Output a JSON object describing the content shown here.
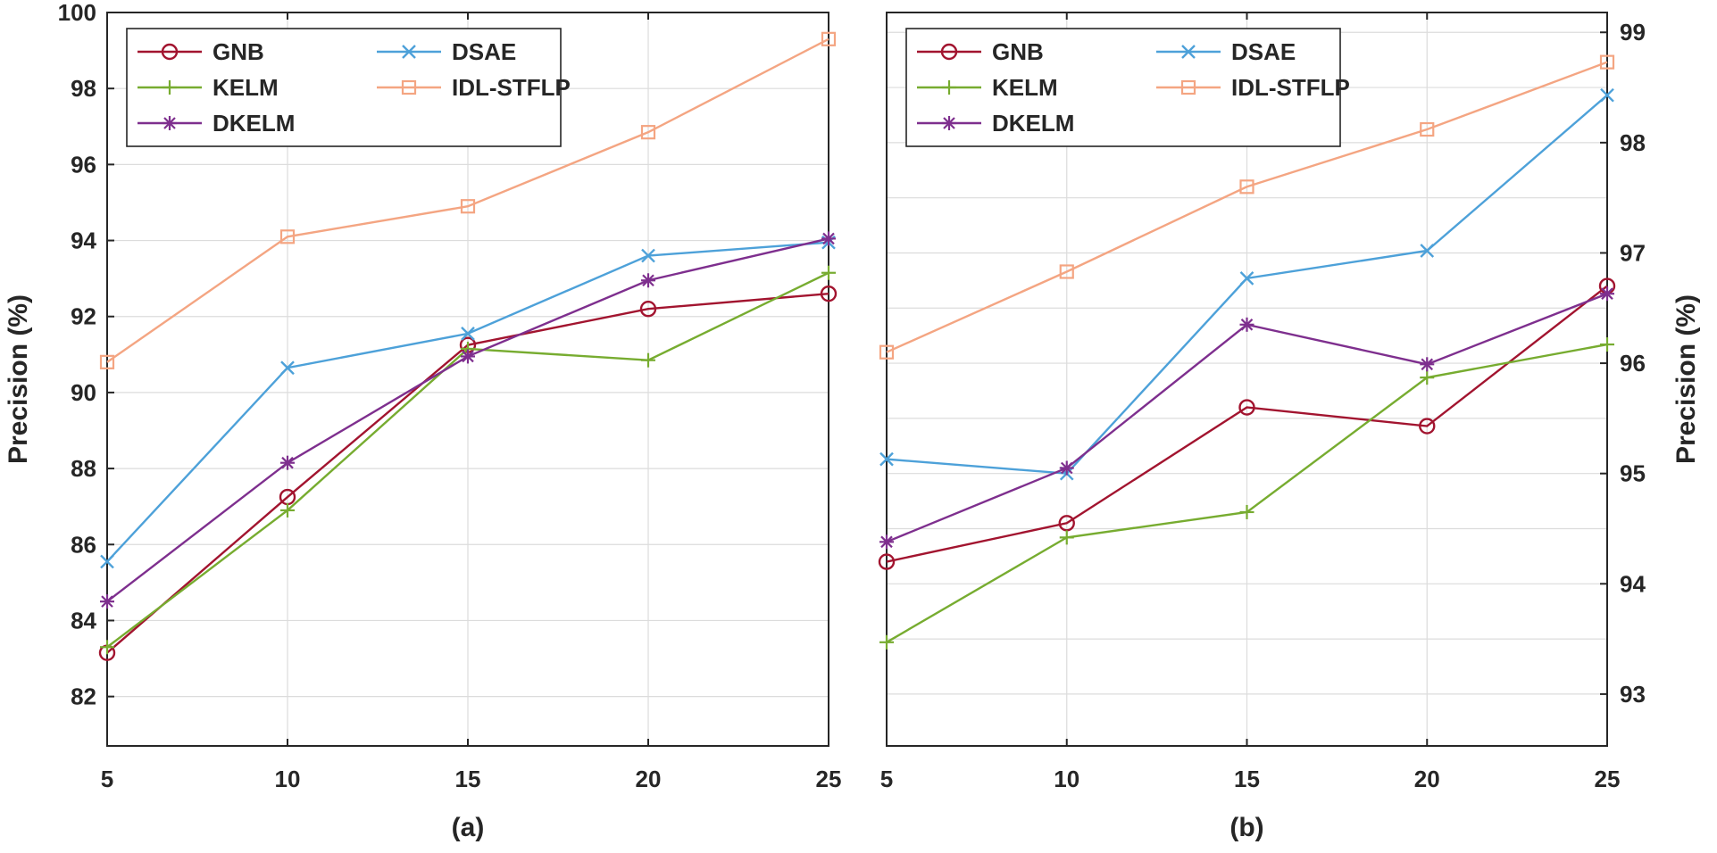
{
  "chart_data": [
    {
      "type": "line",
      "panel_label": "(a)",
      "ylabel": "Precision (%)",
      "xlabel": "",
      "x": [
        5,
        10,
        15,
        20,
        25
      ],
      "xticks": [
        "5",
        "10",
        "15",
        "20",
        "25"
      ],
      "xlim": [
        5,
        25
      ],
      "ylim": [
        80.7,
        100
      ],
      "yticks": [
        "82",
        "84",
        "86",
        "88",
        "90",
        "92",
        "94",
        "96",
        "98",
        "100"
      ],
      "ytick_values": [
        82,
        84,
        86,
        88,
        90,
        92,
        94,
        96,
        98,
        100
      ],
      "y_axis_side": "left",
      "grid": true,
      "legend_position": "top-left",
      "series": [
        {
          "name": "GNB",
          "marker": "circle",
          "color": "#A2142F",
          "values": [
            83.15,
            87.25,
            91.25,
            92.2,
            92.6
          ]
        },
        {
          "name": "DSAE",
          "marker": "x",
          "color": "#4DA1D9",
          "values": [
            85.55,
            90.65,
            91.55,
            93.6,
            93.95
          ]
        },
        {
          "name": "KELM",
          "marker": "plus",
          "color": "#77AC30",
          "values": [
            83.3,
            86.9,
            91.15,
            90.85,
            93.15
          ]
        },
        {
          "name": "IDL-STFLP",
          "marker": "square",
          "color": "#F4A582",
          "values": [
            90.8,
            94.1,
            94.9,
            96.85,
            99.3
          ]
        },
        {
          "name": "DKELM",
          "marker": "star",
          "color": "#7E2F8E",
          "values": [
            84.5,
            88.15,
            90.95,
            92.95,
            94.05
          ]
        }
      ]
    },
    {
      "type": "line",
      "panel_label": "(b)",
      "ylabel": "Precision (%)",
      "xlabel": "",
      "x": [
        5,
        10,
        15,
        20,
        25
      ],
      "xticks": [
        "5",
        "10",
        "15",
        "20",
        "25"
      ],
      "xlim": [
        5,
        25
      ],
      "ylim": [
        92.53,
        99.18
      ],
      "yticks": [
        "93",
        "94",
        "95",
        "96",
        "97",
        "98",
        "99"
      ],
      "ytick_values": [
        93,
        94,
        95,
        96,
        97,
        98,
        99
      ],
      "ygrid_values": [
        93,
        93.5,
        94,
        94.5,
        95,
        95.5,
        96,
        96.5,
        97,
        97.5,
        98,
        98.5,
        99
      ],
      "y_axis_side": "right",
      "grid": true,
      "legend_position": "top-left",
      "series": [
        {
          "name": "GNB",
          "marker": "circle",
          "color": "#A2142F",
          "values": [
            94.2,
            94.55,
            95.6,
            95.43,
            96.7
          ]
        },
        {
          "name": "DSAE",
          "marker": "x",
          "color": "#4DA1D9",
          "values": [
            95.13,
            95.0,
            96.77,
            97.02,
            98.43
          ]
        },
        {
          "name": "KELM",
          "marker": "plus",
          "color": "#77AC30",
          "values": [
            93.47,
            94.42,
            94.65,
            95.87,
            96.17
          ]
        },
        {
          "name": "IDL-STFLP",
          "marker": "square",
          "color": "#F4A582",
          "values": [
            96.1,
            96.83,
            97.6,
            98.12,
            98.73
          ]
        },
        {
          "name": "DKELM",
          "marker": "star",
          "color": "#7E2F8E",
          "values": [
            94.38,
            95.05,
            96.35,
            95.99,
            96.63
          ]
        }
      ]
    }
  ]
}
